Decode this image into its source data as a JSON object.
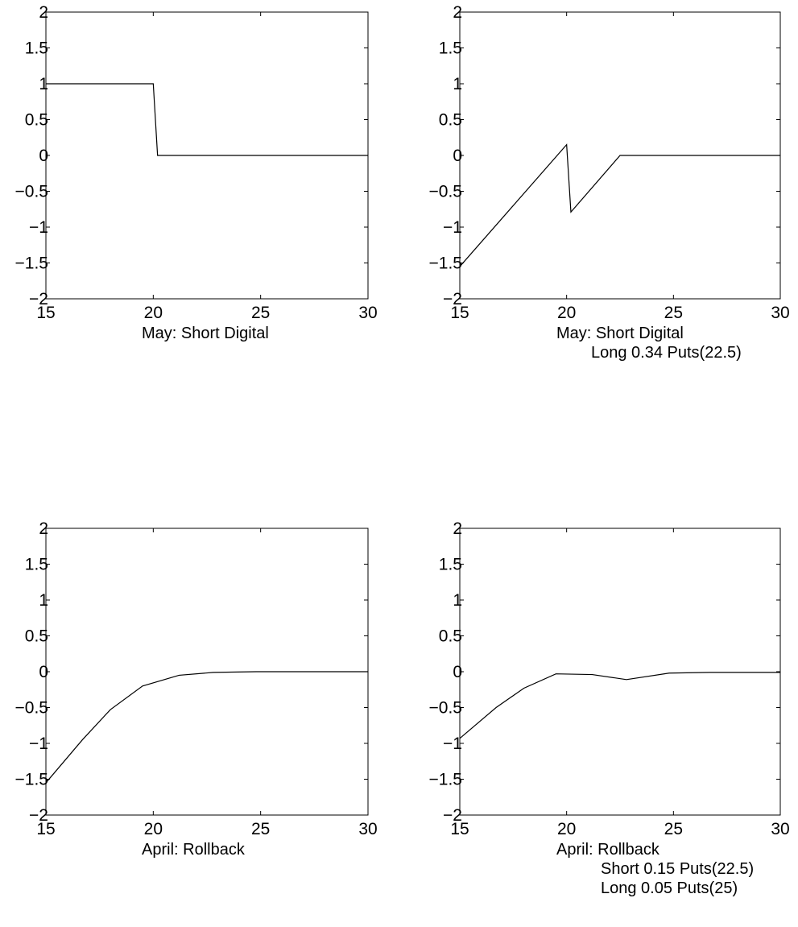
{
  "chart_data": [
    {
      "type": "line",
      "caption": [
        "May: Short Digital"
      ],
      "xlim": [
        15,
        30
      ],
      "ylim": [
        -2,
        2
      ],
      "xticks": [
        "15",
        "20",
        "25",
        "30"
      ],
      "yticks": [
        "2",
        "1.5",
        "1",
        "0.5",
        "0",
        "−0.5",
        "−1",
        "−1.5",
        "−2"
      ],
      "grid": false,
      "series": [
        {
          "x": [
            15,
            20,
            20.2,
            30
          ],
          "y": [
            1,
            1,
            0,
            0
          ]
        }
      ]
    },
    {
      "type": "line",
      "caption": [
        "May: Short Digital",
        "Long 0.34 Puts(22.5)"
      ],
      "xlim": [
        15,
        30
      ],
      "ylim": [
        -2,
        2
      ],
      "xticks": [
        "15",
        "20",
        "25",
        "30"
      ],
      "yticks": [
        "2",
        "1.5",
        "1",
        "0.5",
        "0",
        "−0.5",
        "−1",
        "−1.5",
        "−2"
      ],
      "grid": false,
      "series": [
        {
          "x": [
            15,
            20,
            20.2,
            22.5,
            30
          ],
          "y": [
            -1.55,
            0.15,
            -0.79,
            0,
            0
          ]
        }
      ]
    },
    {
      "type": "line",
      "caption": [
        "April: Rollback"
      ],
      "xlim": [
        15,
        30
      ],
      "ylim": [
        -2,
        2
      ],
      "xticks": [
        "15",
        "20",
        "25",
        "30"
      ],
      "yticks": [
        "2",
        "1.5",
        "1",
        "0.5",
        "0",
        "−0.5",
        "−1",
        "−1.5",
        "−2"
      ],
      "grid": false,
      "series": [
        {
          "x": [
            15,
            16.7,
            18,
            19.5,
            21.2,
            22.8,
            24.8,
            26.7,
            30
          ],
          "y": [
            -1.55,
            -0.95,
            -0.53,
            -0.2,
            -0.05,
            -0.01,
            0,
            0,
            0
          ]
        }
      ]
    },
    {
      "type": "line",
      "caption": [
        "April: Rollback",
        "Short 0.15 Puts(22.5)",
        "Long 0.05 Puts(25)"
      ],
      "xlim": [
        15,
        30
      ],
      "ylim": [
        -2,
        2
      ],
      "xticks": [
        "15",
        "20",
        "25",
        "30"
      ],
      "yticks": [
        "2",
        "1.5",
        "1",
        "0.5",
        "0",
        "−0.5",
        "−1",
        "−1.5",
        "−2"
      ],
      "grid": false,
      "series": [
        {
          "x": [
            15,
            16.7,
            18,
            19.5,
            21.2,
            22.8,
            24.8,
            26.7,
            30
          ],
          "y": [
            -0.93,
            -0.5,
            -0.23,
            -0.03,
            -0.04,
            -0.11,
            -0.02,
            -0.01,
            -0.01
          ]
        }
      ]
    }
  ]
}
